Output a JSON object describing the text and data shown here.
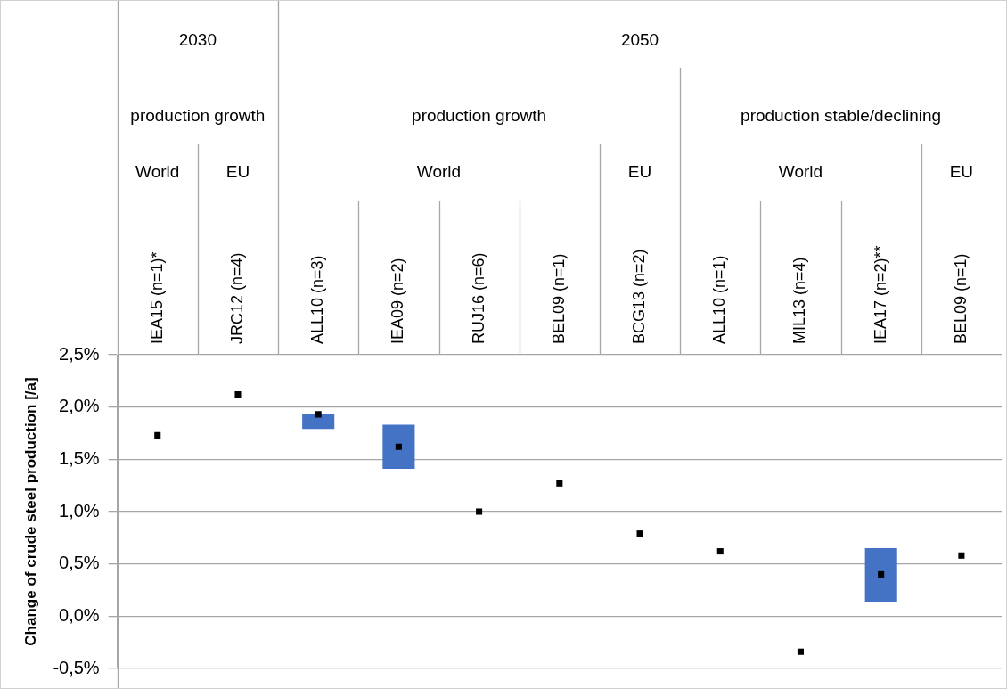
{
  "chart_data": {
    "type": "bar",
    "categories": [
      "IEA15 (n=1)*",
      "JRC12 (n=4)",
      "ALL10 (n=3)",
      "IEA09 (n=2)",
      "RUJ16 (n=6)",
      "BEL09 (n=1)",
      "BCG13 (n=2)",
      "ALL10 (n=1)",
      "MIL13 (n=4)",
      "IEA17 (n=2)**",
      "BEL09 (n=1)"
    ],
    "series": [
      {
        "type": "scatter",
        "color": "#000000",
        "values": [
          1.73,
          2.12,
          1.93,
          1.62,
          1.0,
          1.27,
          0.79,
          0.62,
          -0.34,
          0.4,
          0.58
        ]
      },
      {
        "color": "#4472c4",
        "values": [
          null,
          null,
          0.14,
          0.42,
          null,
          null,
          null,
          null,
          null,
          0.51,
          null
        ],
        "base": [
          null,
          null,
          1.79,
          1.41,
          null,
          null,
          null,
          null,
          null,
          0.14,
          null
        ]
      }
    ],
    "ylabel": "Change of crude steel production [/a]",
    "ylim": [
      -0.5,
      2.5
    ],
    "yticks": [
      {
        "value": -0.5,
        "label": "-0,5%"
      },
      {
        "value": 0,
        "label": "0,0%"
      },
      {
        "value": 0.5,
        "label": "0,5%"
      },
      {
        "value": 1,
        "label": "1,0%"
      },
      {
        "value": 1.5,
        "label": "1,5%"
      },
      {
        "value": 2,
        "label": "2,0%"
      },
      {
        "value": 2.5,
        "label": "2,5%"
      }
    ],
    "grid": "y",
    "marker": "square",
    "legend": false,
    "annotations": [
      "2030",
      "2050",
      "production growth",
      "production growth",
      "production stable/declining",
      "World",
      "EU",
      "World",
      "EU",
      "World",
      "EU"
    ]
  }
}
